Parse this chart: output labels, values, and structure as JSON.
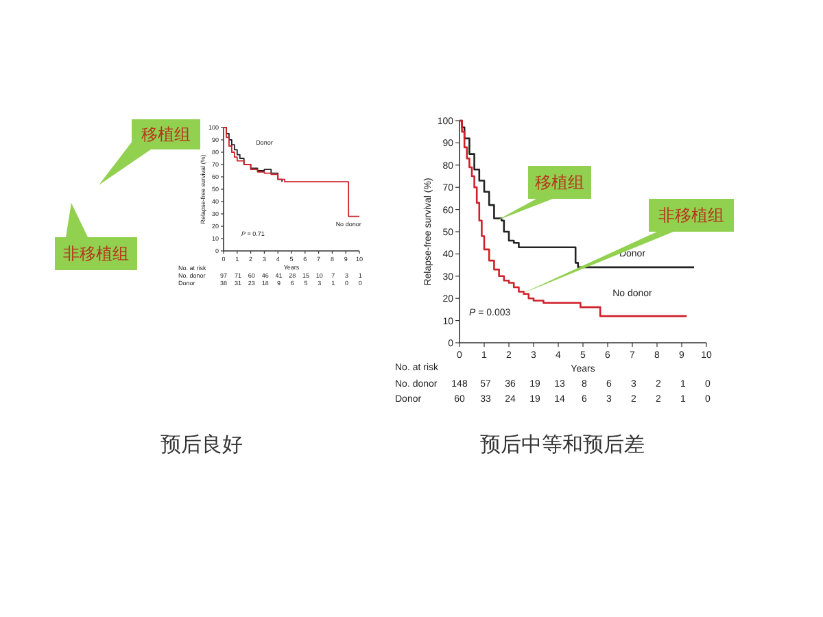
{
  "chart_data": [
    {
      "type": "step",
      "title": "预后良好",
      "xlabel": "Years",
      "ylabel": "Relapse-free survival (%)",
      "xlim": [
        0,
        10
      ],
      "ylim": [
        0,
        100
      ],
      "xticks": [
        0,
        1,
        2,
        3,
        4,
        5,
        6,
        7,
        8,
        9,
        10
      ],
      "yticks": [
        0,
        10,
        20,
        30,
        40,
        50,
        60,
        70,
        80,
        90,
        100
      ],
      "grid": false,
      "legend": false,
      "series": [
        {
          "name": "Donor",
          "color": "#222222",
          "x": [
            0,
            0.2,
            0.4,
            0.6,
            0.8,
            1.0,
            1.2,
            1.5,
            2.0,
            2.5,
            3.0,
            3.5,
            4.0,
            4.3
          ],
          "values": [
            100,
            95,
            90,
            86,
            82,
            78,
            75,
            70,
            67,
            65,
            66,
            63,
            58,
            56
          ]
        },
        {
          "name": "No donor",
          "color": "#d0202a",
          "x": [
            0,
            0.2,
            0.4,
            0.6,
            0.8,
            1.0,
            1.5,
            2.0,
            2.5,
            3.0,
            3.5,
            4.0,
            4.5,
            9.2,
            10
          ],
          "values": [
            100,
            92,
            85,
            80,
            76,
            73,
            70,
            66,
            64,
            63,
            62,
            58,
            56,
            28,
            28
          ]
        }
      ],
      "annotations": [
        "移植组",
        "非移植组",
        "*P* = 0.71",
        "No. at risk",
        "No. donor",
        "97 71 60 46 41 28 15 10 7 3 1",
        "Donor",
        "38 31 23 18 9 6 5 3 1 0 0"
      ]
    },
    {
      "type": "step",
      "title": "预后中等和预后差",
      "xlabel": "Years",
      "ylabel": "Relapse-free survival (%)",
      "xlim": [
        0,
        10
      ],
      "ylim": [
        0,
        100
      ],
      "xticks": [
        0,
        1,
        2,
        3,
        4,
        5,
        6,
        7,
        8,
        9,
        10
      ],
      "yticks": [
        0,
        10,
        20,
        30,
        40,
        50,
        60,
        70,
        80,
        90,
        100
      ],
      "grid": false,
      "legend": false,
      "series": [
        {
          "name": "Donor",
          "color": "#222222",
          "x": [
            0,
            0.1,
            0.2,
            0.4,
            0.6,
            0.8,
            1.0,
            1.2,
            1.4,
            1.7,
            1.8,
            2.0,
            2.2,
            2.4,
            4.7,
            4.8,
            9.5
          ],
          "values": [
            100,
            97,
            92,
            85,
            78,
            73,
            68,
            62,
            56,
            55,
            50,
            46,
            45,
            43,
            36,
            34,
            34
          ]
        },
        {
          "name": "No donor",
          "color": "#d0202a",
          "x": [
            0,
            0.1,
            0.2,
            0.3,
            0.4,
            0.5,
            0.6,
            0.7,
            0.8,
            0.9,
            1.0,
            1.2,
            1.4,
            1.6,
            1.8,
            2.0,
            2.2,
            2.4,
            2.6,
            2.8,
            3.0,
            3.4,
            4.9,
            5.7,
            9.2
          ],
          "values": [
            100,
            95,
            88,
            83,
            79,
            75,
            70,
            63,
            55,
            48,
            42,
            37,
            33,
            30,
            28,
            27,
            25,
            23,
            22,
            20,
            19,
            18,
            16,
            12,
            12
          ]
        }
      ],
      "annotations": [
        {
          "text": "移植组",
          "x": 1.5,
          "y": 55
        },
        {
          "text": "非移植组",
          "x": 2.5,
          "y": 22
        },
        "*P* = 0.003",
        "No. at risk",
        "No. donor",
        "148 57 36 19 13 8 6 3 2 1 0",
        "Donor",
        "60 33 24 19 14 6 3 2 2 1 0"
      ]
    }
  ]
}
